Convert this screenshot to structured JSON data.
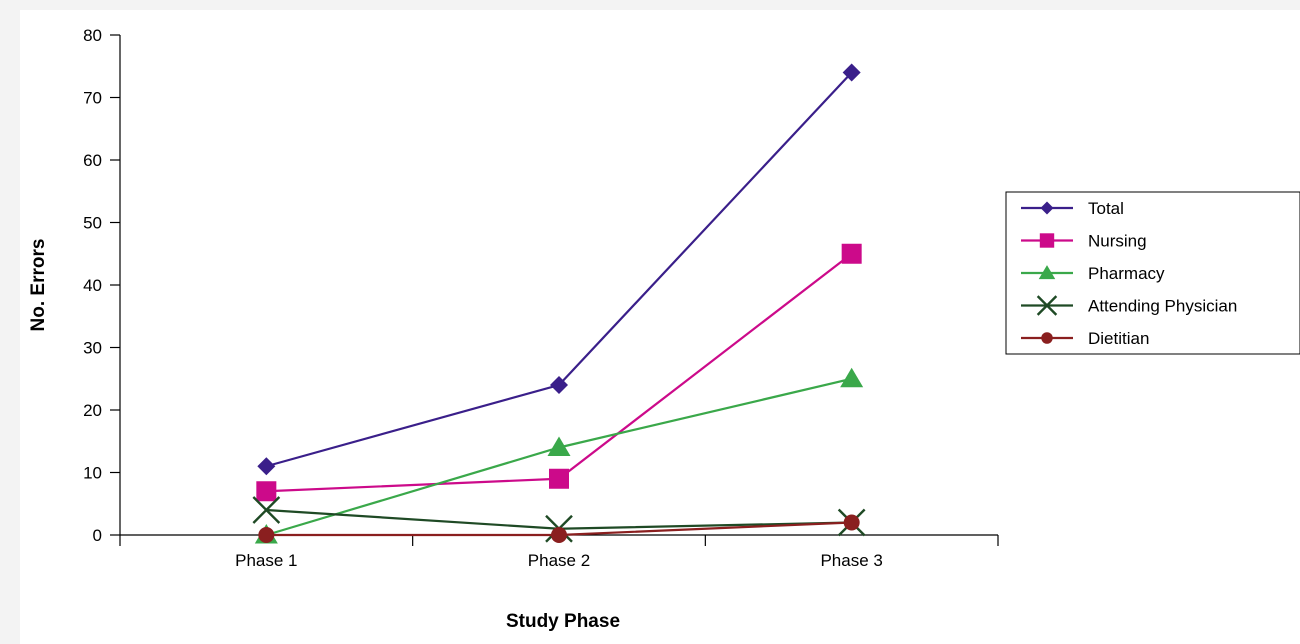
{
  "chart_data": {
    "type": "line",
    "title": "",
    "xlabel": "Study Phase",
    "ylabel": "No. Errors",
    "categories": [
      "Phase 1",
      "Phase 2",
      "Phase 3"
    ],
    "ylim": [
      0,
      80
    ],
    "yticks": [
      "0",
      "10",
      "20",
      "30",
      "40",
      "50",
      "60",
      "70",
      "80"
    ],
    "grid": false,
    "legend_position": "right",
    "series": [
      {
        "name": "Total",
        "values": [
          11,
          24,
          74
        ],
        "color": "#3a1f8a",
        "marker": "diamond"
      },
      {
        "name": "Nursing",
        "values": [
          7,
          9,
          45
        ],
        "color": "#cc0a8a",
        "marker": "square"
      },
      {
        "name": "Pharmacy",
        "values": [
          0,
          14,
          25
        ],
        "color": "#3aa84a",
        "marker": "triangle"
      },
      {
        "name": "Attending Physician",
        "values": [
          4,
          1,
          2
        ],
        "color": "#1f4a25",
        "marker": "x"
      },
      {
        "name": "Dietitian",
        "values": [
          0,
          0,
          2
        ],
        "color": "#8a1f1f",
        "marker": "circle"
      }
    ]
  }
}
